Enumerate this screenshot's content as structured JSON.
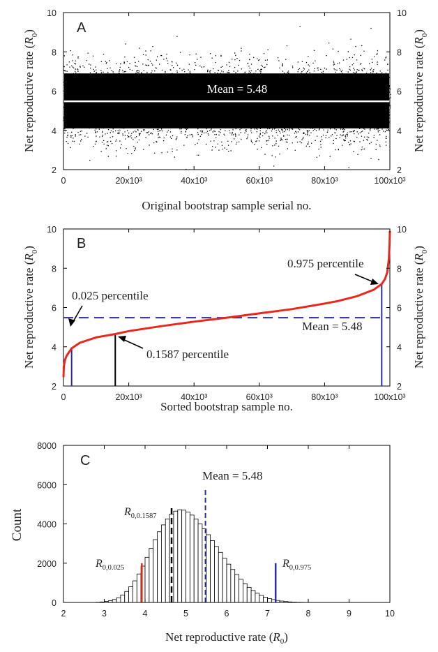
{
  "chart_data": [
    {
      "type": "scatter",
      "panel_letter": "A",
      "xlabel": "Original bootstrap sample serial no.",
      "ylabel": "Net reproductive rate (R0)",
      "ylabel_main": "Net reproductive rate (",
      "ylabel_sym": "R",
      "ylabel_sub": "0",
      "ylabel_close": ")",
      "xlim": [
        0,
        100000
      ],
      "ylim": [
        2,
        10
      ],
      "xticks": [
        0,
        20000,
        40000,
        60000,
        80000,
        100000
      ],
      "xtick_labels": [
        "0",
        "20x10³",
        "40x10³",
        "60x10³",
        "80x10³",
        "100x10³"
      ],
      "yticks": [
        2,
        4,
        6,
        8,
        10
      ],
      "ytick_labels": [
        "2",
        "4",
        "6",
        "8",
        "10"
      ],
      "n_points": 100000,
      "mean": 5.48,
      "mean_label": "Mean = 5.48",
      "mean_line_color": "#ffffff",
      "point_color": "#000000",
      "right_axis_mirrored": true
    },
    {
      "type": "line",
      "panel_letter": "B",
      "xlabel": "Sorted bootstrap sample no.",
      "ylabel": "Net reproductive rate (R0)",
      "ylabel_main": "Net reproductive rate (",
      "ylabel_sym": "R",
      "ylabel_sub": "0",
      "ylabel_close": ")",
      "xlim": [
        0,
        100000
      ],
      "ylim": [
        2,
        10
      ],
      "xticks": [
        0,
        20000,
        40000,
        60000,
        80000,
        100000
      ],
      "xtick_labels": [
        "0",
        "20x10³",
        "40x10³",
        "60x10³",
        "80x10³",
        "100x10³"
      ],
      "yticks": [
        2,
        4,
        6,
        8,
        10
      ],
      "ytick_labels": [
        "2",
        "4",
        "6",
        "8",
        "10"
      ],
      "curve_color": "#e8281c",
      "curve": {
        "x": [
          0,
          100,
          500,
          1000,
          2500,
          5000,
          10000,
          15870,
          20000,
          30000,
          40000,
          50000,
          60000,
          70000,
          80000,
          84130,
          90000,
          95000,
          97500,
          98500,
          99200,
          99700,
          99900,
          100000
        ],
        "y": [
          2.45,
          3.0,
          3.35,
          3.55,
          3.92,
          4.2,
          4.48,
          4.65,
          4.8,
          5.05,
          5.28,
          5.48,
          5.7,
          5.92,
          6.2,
          6.33,
          6.58,
          6.9,
          7.2,
          7.45,
          7.8,
          8.5,
          9.2,
          9.9
        ]
      },
      "mean": 5.48,
      "mean_label": "Mean = 5.48",
      "mean_line_color": "#2b2d9b",
      "percentile_lines": [
        {
          "x": 2500,
          "y": 3.92,
          "color": "#2b2d9b"
        },
        {
          "x": 15870,
          "y": 4.65,
          "color": "#000000"
        },
        {
          "x": 97500,
          "y": 7.2,
          "color": "#2b2d9b"
        }
      ],
      "annotations": [
        {
          "text": "0.025 percentile",
          "target_x": 2500,
          "target_y": 3.92
        },
        {
          "text": "0.1587 percentile",
          "target_x": 15870,
          "target_y": 4.65
        },
        {
          "text": "0.975 percentile",
          "target_x": 97500,
          "target_y": 7.2
        }
      ],
      "right_axis_mirrored": true
    },
    {
      "type": "bar",
      "panel_letter": "C",
      "xlabel": "Net reproductive rate (R0)",
      "xlabel_main": "Net reproductive rate (",
      "xlabel_sym": "R",
      "xlabel_sub": "0",
      "xlabel_close": ")",
      "ylabel": "Count",
      "xlim": [
        2,
        10
      ],
      "ylim": [
        0,
        8000
      ],
      "xticks": [
        2,
        3,
        4,
        5,
        6,
        7,
        8,
        9,
        10
      ],
      "xtick_labels": [
        "2",
        "3",
        "4",
        "5",
        "6",
        "7",
        "8",
        "9",
        "10"
      ],
      "yticks": [
        0,
        2000,
        4000,
        6000,
        8000
      ],
      "ytick_labels": [
        "0",
        "2000",
        "4000",
        "6000",
        "8000"
      ],
      "bin_width": 0.1,
      "bins_start": 2.7,
      "counts": [
        3,
        10,
        25,
        50,
        90,
        150,
        240,
        380,
        560,
        800,
        1100,
        1450,
        1850,
        2300,
        2750,
        3200,
        3600,
        3950,
        4250,
        4500,
        4650,
        4720,
        4700,
        4600,
        4450,
        4250,
        4000,
        3750,
        3450,
        3150,
        2850,
        2550,
        2250,
        1950,
        1680,
        1420,
        1180,
        960,
        770,
        610,
        470,
        360,
        270,
        200,
        145,
        100,
        70,
        45,
        28,
        17,
        10,
        6,
        3,
        2,
        1
      ],
      "mean": 5.48,
      "mean_label": "Mean = 5.48",
      "markers": [
        {
          "label": "R",
          "sub": "0,0.025",
          "value": 3.92,
          "height": 2000,
          "color": "#e8281c",
          "style": "solid"
        },
        {
          "label": "R",
          "sub": "0,0.1587",
          "value": 4.65,
          "height": 4800,
          "color": "#000000",
          "style": "dashed"
        },
        {
          "label": "R",
          "sub": "0,0.975",
          "value": 7.2,
          "height": 2000,
          "color": "#2b2d9b",
          "style": "solid"
        }
      ],
      "mean_line_color": "#2b2d9b",
      "bar_color": "#ffffff",
      "bar_edge_color": "#000000"
    }
  ]
}
